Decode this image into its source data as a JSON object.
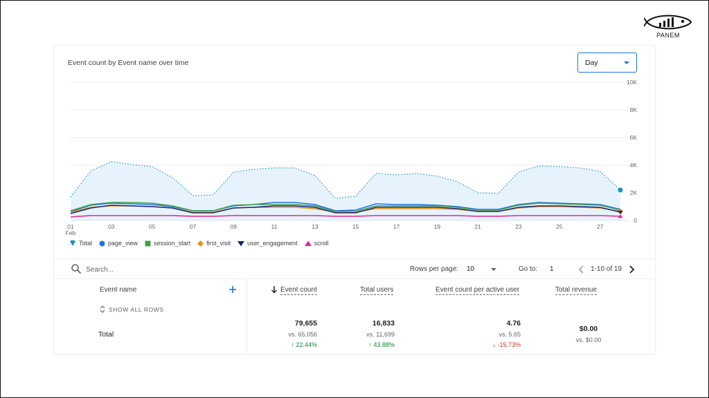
{
  "brand": {
    "name": "PANEM"
  },
  "card": {
    "title": "Event count by Event name over time"
  },
  "granularity": {
    "selected": "Day"
  },
  "colors": {
    "total": "#1a8fc4",
    "page_view": "#1a73e8",
    "session_start": "#43a047",
    "first_visit": "#e8910c",
    "user_engagement": "#1a237e",
    "scroll": "#e52592"
  },
  "chart_data": {
    "type": "line",
    "x_tick_labels": [
      "01\nFeb",
      "03",
      "05",
      "07",
      "09",
      "11",
      "13",
      "15",
      "17",
      "19",
      "21",
      "23",
      "25",
      "27"
    ],
    "x": [
      1,
      2,
      3,
      4,
      5,
      6,
      7,
      8,
      9,
      10,
      11,
      12,
      13,
      14,
      15,
      16,
      17,
      18,
      19,
      20,
      21,
      22,
      23,
      24,
      25,
      26,
      27,
      28
    ],
    "y_tick_labels": [
      "10K",
      "8K",
      "6K",
      "4K",
      "2K",
      "0"
    ],
    "ylim": [
      0,
      10000
    ],
    "grid": true,
    "legend_position": "bottom-left",
    "series": [
      {
        "name": "Total",
        "key": "total",
        "style": "dotted-area",
        "values": [
          1700,
          3600,
          4250,
          4050,
          3900,
          3100,
          1800,
          1850,
          3500,
          3700,
          3800,
          3800,
          3250,
          1600,
          1750,
          3400,
          3300,
          3400,
          3200,
          2800,
          2000,
          1950,
          3500,
          3950,
          3900,
          3800,
          3550,
          2200
        ]
      },
      {
        "name": "page_view",
        "key": "page_view",
        "values": [
          650,
          1100,
          1250,
          1200,
          1150,
          1000,
          700,
          700,
          1050,
          1150,
          1300,
          1300,
          1150,
          700,
          750,
          1200,
          1150,
          1150,
          1100,
          1000,
          800,
          800,
          1150,
          1300,
          1250,
          1200,
          1150,
          800
        ]
      },
      {
        "name": "session_start",
        "key": "session_start",
        "values": [
          700,
          1150,
          1300,
          1300,
          1250,
          1050,
          700,
          700,
          1100,
          1150,
          1150,
          1150,
          1050,
          650,
          650,
          1050,
          1050,
          1050,
          1050,
          950,
          750,
          750,
          1100,
          1250,
          1200,
          1150,
          1100,
          750
        ]
      },
      {
        "name": "first_visit",
        "key": "first_visit",
        "values": [
          600,
          950,
          1050,
          1050,
          1000,
          900,
          600,
          600,
          900,
          950,
          950,
          950,
          850,
          600,
          600,
          850,
          850,
          850,
          850,
          800,
          650,
          650,
          900,
          1000,
          1000,
          950,
          900,
          650
        ]
      },
      {
        "name": "user_engagement",
        "key": "user_engagement",
        "values": [
          500,
          900,
          1100,
          1050,
          1000,
          900,
          550,
          550,
          900,
          950,
          1050,
          1050,
          950,
          550,
          550,
          950,
          950,
          950,
          950,
          850,
          650,
          650,
          950,
          1050,
          1050,
          1000,
          950,
          600
        ]
      },
      {
        "name": "scroll",
        "key": "scroll",
        "values": [
          250,
          350,
          350,
          350,
          350,
          350,
          300,
          300,
          350,
          350,
          350,
          350,
          350,
          300,
          300,
          350,
          350,
          350,
          350,
          350,
          300,
          300,
          350,
          350,
          350,
          350,
          350,
          300
        ]
      }
    ]
  },
  "toolbar": {
    "search_placeholder": "Search...",
    "rows_per_page_label": "Rows per page:",
    "rows_per_page_value": "10",
    "goto_label": "Go to:",
    "goto_value": "1",
    "page_range": "1-10 of 19"
  },
  "table": {
    "headers": {
      "event_name": "Event name",
      "event_count": "Event count",
      "total_users": "Total users",
      "per_active_user": "Event count per active user",
      "total_revenue": "Total revenue"
    },
    "show_all_rows": "SHOW ALL ROWS",
    "total_row": {
      "label": "Total",
      "event_count": {
        "value": "79,655",
        "vs": "vs. 65,056",
        "change": "↑ 22.44%"
      },
      "total_users": {
        "value": "16,833",
        "vs": "vs. 11,699",
        "change": "↑ 43.88%"
      },
      "per_active_user": {
        "value": "4.76",
        "vs": "vs. 5.65",
        "change": "↓ -15.73%"
      },
      "total_revenue": {
        "value": "$0.00",
        "vs": "vs. $0.00"
      }
    }
  }
}
